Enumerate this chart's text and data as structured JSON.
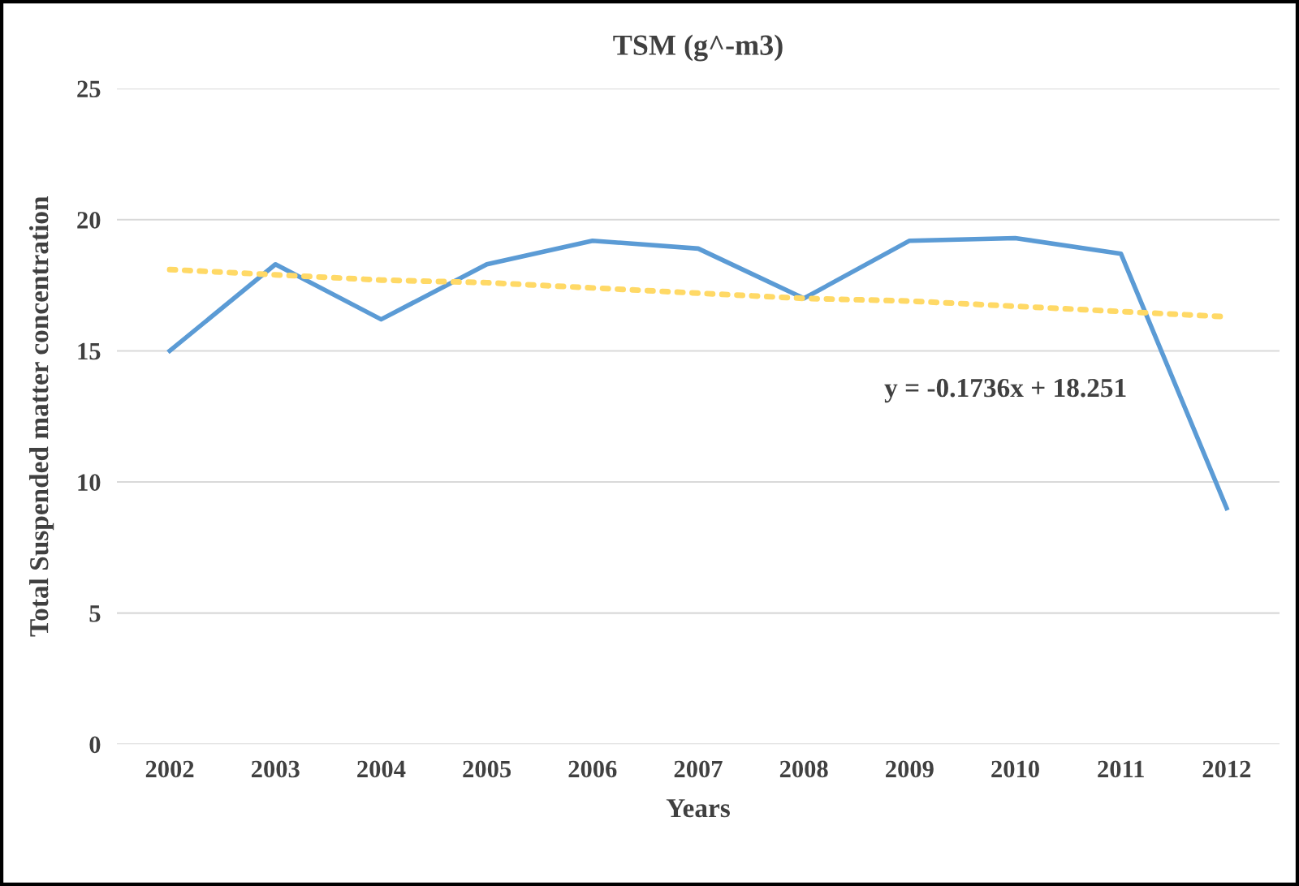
{
  "chart_data": {
    "type": "line",
    "title": "TSM (g^-m3)",
    "xlabel": "Years",
    "ylabel": "Total Suspended matter concentration",
    "categories": [
      "2002",
      "2003",
      "2004",
      "2005",
      "2006",
      "2007",
      "2008",
      "2009",
      "2010",
      "2011",
      "2012"
    ],
    "series": [
      {
        "color": "#5b9bd5",
        "line_style": "solid",
        "values": [
          15.0,
          18.3,
          16.2,
          18.3,
          19.2,
          18.9,
          17.0,
          19.2,
          19.3,
          18.7,
          9.0
        ]
      },
      {
        "color": "#ffd966",
        "line_style": "dotted",
        "values": [
          18.1,
          17.9,
          17.7,
          17.6,
          17.4,
          17.2,
          17.0,
          16.9,
          16.7,
          16.5,
          16.3
        ]
      }
    ],
    "ylim": [
      0,
      25
    ],
    "yticks": [
      0,
      5,
      10,
      15,
      20,
      25
    ],
    "grid": "y",
    "legend": false,
    "annotations": [
      "y = -0.1736x + 18.251"
    ]
  }
}
